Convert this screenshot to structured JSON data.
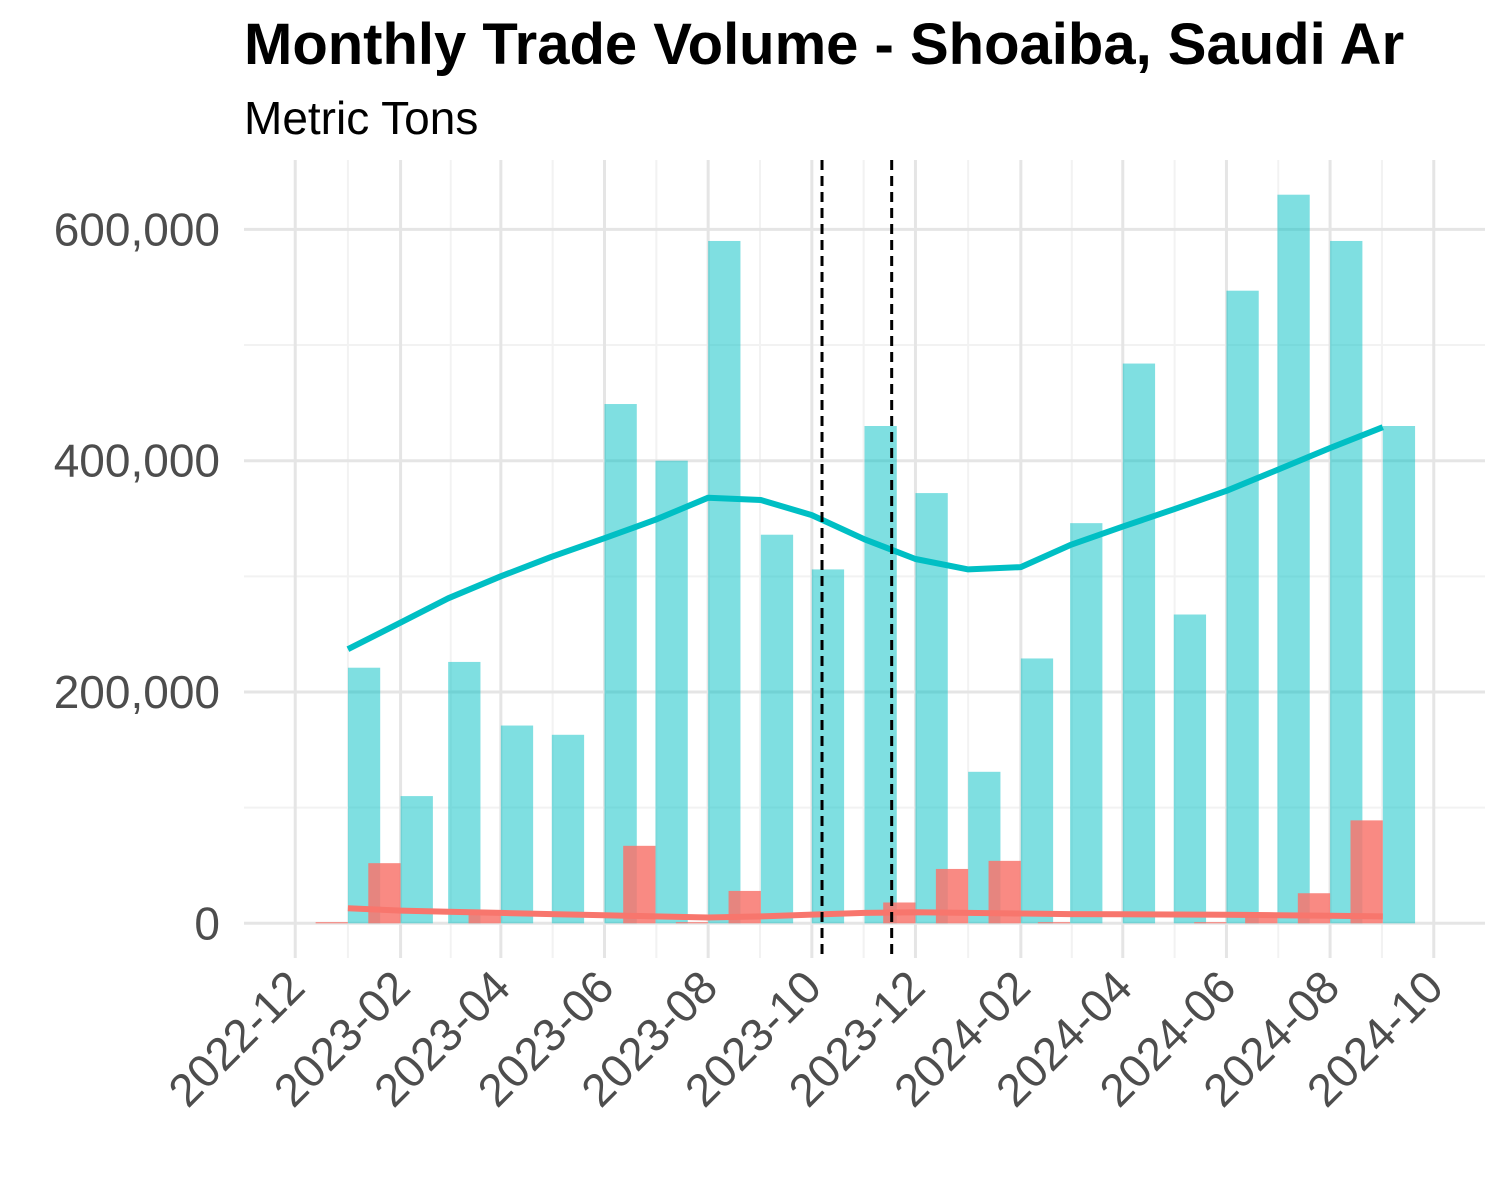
{
  "chart_data": {
    "type": "bar",
    "title": "Monthly Trade Volume - Shoaiba, Saudi Ar",
    "subtitle": "Metric Tons",
    "xlabel": "",
    "ylabel": "",
    "x_range": [
      "2022-12-01",
      "2024-10-01"
    ],
    "ylim": [
      -30000,
      660000
    ],
    "y_ticks": [
      0,
      200000,
      400000,
      600000
    ],
    "y_tick_labels": [
      "0",
      "200,000",
      "400,000",
      "600,000"
    ],
    "x_ticks": [
      "2022-12-01",
      "2023-02-01",
      "2023-04-01",
      "2023-06-01",
      "2023-08-01",
      "2023-10-01",
      "2023-12-01",
      "2024-02-01",
      "2024-04-01",
      "2024-06-01",
      "2024-08-01",
      "2024-10-01"
    ],
    "x_tick_labels": [
      "2022-12",
      "2023-02",
      "2023-04",
      "2023-06",
      "2023-08",
      "2023-10",
      "2023-12",
      "2024-02",
      "2024-04",
      "2024-06",
      "2024-08",
      "2024-10"
    ],
    "grid": true,
    "legend": "none",
    "bar_series": [
      {
        "color": "#00bfc4",
        "points": [
          {
            "x": "2023-01-01",
            "y": 221000
          },
          {
            "x": "2023-02-01",
            "y": 110000
          },
          {
            "x": "2023-03-01",
            "y": 226000
          },
          {
            "x": "2023-04-01",
            "y": 171000
          },
          {
            "x": "2023-05-01",
            "y": 163000
          },
          {
            "x": "2023-06-01",
            "y": 449000
          },
          {
            "x": "2023-07-01",
            "y": 400000
          },
          {
            "x": "2023-08-01",
            "y": 590000
          },
          {
            "x": "2023-09-01",
            "y": 336000
          },
          {
            "x": "2023-10-01",
            "y": 306000
          },
          {
            "x": "2023-11-01",
            "y": 430000
          },
          {
            "x": "2023-12-01",
            "y": 372000
          },
          {
            "x": "2024-01-01",
            "y": 131000
          },
          {
            "x": "2024-02-01",
            "y": 229000
          },
          {
            "x": "2024-03-01",
            "y": 346000
          },
          {
            "x": "2024-04-01",
            "y": 484000
          },
          {
            "x": "2024-05-01",
            "y": 267000
          },
          {
            "x": "2024-06-01",
            "y": 547000
          },
          {
            "x": "2024-07-01",
            "y": 630000
          },
          {
            "x": "2024-08-01",
            "y": 590000
          },
          {
            "x": "2024-09-01",
            "y": 430000
          }
        ]
      },
      {
        "color": "#f8766d",
        "points": [
          {
            "x": "2023-01-01",
            "y": 1000
          },
          {
            "x": "2023-02-01",
            "y": 52000
          },
          {
            "x": "2023-03-01",
            "y": 0
          },
          {
            "x": "2023-04-01",
            "y": 10000
          },
          {
            "x": "2023-05-01",
            "y": 0
          },
          {
            "x": "2023-06-01",
            "y": 0
          },
          {
            "x": "2023-07-01",
            "y": 67000
          },
          {
            "x": "2023-08-01",
            "y": 1000
          },
          {
            "x": "2023-09-01",
            "y": 28000
          },
          {
            "x": "2023-10-01",
            "y": 0
          },
          {
            "x": "2023-11-01",
            "y": 0
          },
          {
            "x": "2023-12-01",
            "y": 18000
          },
          {
            "x": "2024-01-01",
            "y": 47000
          },
          {
            "x": "2024-02-01",
            "y": 54000
          },
          {
            "x": "2024-03-01",
            "y": 1000
          },
          {
            "x": "2024-04-01",
            "y": 0
          },
          {
            "x": "2024-05-01",
            "y": 0
          },
          {
            "x": "2024-06-01",
            "y": 1000
          },
          {
            "x": "2024-07-01",
            "y": 8000
          },
          {
            "x": "2024-08-01",
            "y": 26000
          },
          {
            "x": "2024-09-01",
            "y": 89000
          }
        ]
      }
    ],
    "trend_lines": [
      {
        "color": "#00bfc4",
        "points": [
          {
            "x": "2023-01-01",
            "y": 237000
          },
          {
            "x": "2023-02-01",
            "y": 260000
          },
          {
            "x": "2023-03-01",
            "y": 281000
          },
          {
            "x": "2023-04-01",
            "y": 300000
          },
          {
            "x": "2023-05-01",
            "y": 317000
          },
          {
            "x": "2023-06-01",
            "y": 333000
          },
          {
            "x": "2023-07-01",
            "y": 349000
          },
          {
            "x": "2023-08-01",
            "y": 368000
          },
          {
            "x": "2023-09-01",
            "y": 366000
          },
          {
            "x": "2023-10-01",
            "y": 353000
          },
          {
            "x": "2023-11-01",
            "y": 332000
          },
          {
            "x": "2023-12-01",
            "y": 315000
          },
          {
            "x": "2024-01-01",
            "y": 306000
          },
          {
            "x": "2024-02-01",
            "y": 308000
          },
          {
            "x": "2024-03-01",
            "y": 327000
          },
          {
            "x": "2024-04-01",
            "y": 343000
          },
          {
            "x": "2024-05-01",
            "y": 358000
          },
          {
            "x": "2024-06-01",
            "y": 374000
          },
          {
            "x": "2024-07-01",
            "y": 392000
          },
          {
            "x": "2024-08-01",
            "y": 411000
          },
          {
            "x": "2024-09-01",
            "y": 429000
          }
        ]
      },
      {
        "color": "#f8766d",
        "points": [
          {
            "x": "2023-01-01",
            "y": 13000
          },
          {
            "x": "2023-02-01",
            "y": 11000
          },
          {
            "x": "2023-03-01",
            "y": 10000
          },
          {
            "x": "2023-04-01",
            "y": 9000
          },
          {
            "x": "2023-05-01",
            "y": 8000
          },
          {
            "x": "2023-06-01",
            "y": 7000
          },
          {
            "x": "2023-07-01",
            "y": 6000
          },
          {
            "x": "2023-08-01",
            "y": 5000
          },
          {
            "x": "2023-09-01",
            "y": 6000
          },
          {
            "x": "2023-10-01",
            "y": 7500
          },
          {
            "x": "2023-11-01",
            "y": 9000
          },
          {
            "x": "2023-12-01",
            "y": 9500
          },
          {
            "x": "2024-01-01",
            "y": 9000
          },
          {
            "x": "2024-02-01",
            "y": 8500
          },
          {
            "x": "2024-03-01",
            "y": 8000
          },
          {
            "x": "2024-04-01",
            "y": 7800
          },
          {
            "x": "2024-05-01",
            "y": 7600
          },
          {
            "x": "2024-06-01",
            "y": 7400
          },
          {
            "x": "2024-07-01",
            "y": 7000
          },
          {
            "x": "2024-08-01",
            "y": 6500
          },
          {
            "x": "2024-09-01",
            "y": 6000
          }
        ]
      }
    ],
    "reference_lines": [
      {
        "x": "2023-10-07",
        "style": "dashed",
        "color": "#000000"
      },
      {
        "x": "2023-11-17",
        "style": "dashed",
        "color": "#000000"
      }
    ]
  }
}
